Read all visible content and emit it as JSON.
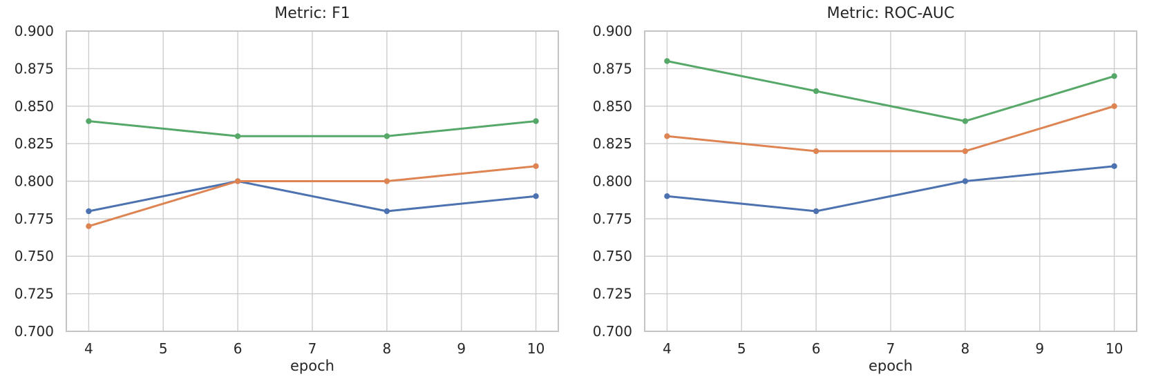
{
  "figure": {
    "background": "#ffffff",
    "text_color": "#262626",
    "grid_color": "#cccccc",
    "spine_color": "#c4c4c4"
  },
  "chart_data": [
    {
      "type": "line",
      "title": "Metric: F1",
      "xlabel": "epoch",
      "ylabel": "",
      "grid": true,
      "legend": "none",
      "x": [
        4,
        6,
        8,
        10
      ],
      "xlim": [
        3.7,
        10.3
      ],
      "ylim": [
        0.7,
        0.9
      ],
      "xticks": [
        4,
        5,
        6,
        7,
        8,
        9,
        10
      ],
      "xtick_labels": [
        "4",
        "5",
        "6",
        "7",
        "8",
        "9",
        "10"
      ],
      "yticks": [
        0.7,
        0.725,
        0.75,
        0.775,
        0.8,
        0.825,
        0.85,
        0.875,
        0.9
      ],
      "ytick_labels": [
        "0.700",
        "0.725",
        "0.750",
        "0.775",
        "0.800",
        "0.825",
        "0.850",
        "0.875",
        "0.900"
      ],
      "series": [
        {
          "name": "series-blue",
          "color": "#4C72B0",
          "values": [
            0.78,
            0.8,
            0.78,
            0.79
          ]
        },
        {
          "name": "series-orange",
          "color": "#DD8452",
          "values": [
            0.77,
            0.8,
            0.8,
            0.81
          ]
        },
        {
          "name": "series-green",
          "color": "#55A868",
          "values": [
            0.84,
            0.83,
            0.83,
            0.84
          ]
        }
      ]
    },
    {
      "type": "line",
      "title": "Metric: ROC-AUC",
      "xlabel": "epoch",
      "ylabel": "",
      "grid": true,
      "legend": "none",
      "x": [
        4,
        6,
        8,
        10
      ],
      "xlim": [
        3.7,
        10.3
      ],
      "ylim": [
        0.7,
        0.9
      ],
      "xticks": [
        4,
        5,
        6,
        7,
        8,
        9,
        10
      ],
      "xtick_labels": [
        "4",
        "5",
        "6",
        "7",
        "8",
        "9",
        "10"
      ],
      "yticks": [
        0.7,
        0.725,
        0.75,
        0.775,
        0.8,
        0.825,
        0.85,
        0.875,
        0.9
      ],
      "ytick_labels": [
        "0.700",
        "0.725",
        "0.750",
        "0.775",
        "0.800",
        "0.825",
        "0.850",
        "0.875",
        "0.900"
      ],
      "series": [
        {
          "name": "series-blue",
          "color": "#4C72B0",
          "values": [
            0.79,
            0.78,
            0.8,
            0.81
          ]
        },
        {
          "name": "series-orange",
          "color": "#DD8452",
          "values": [
            0.83,
            0.82,
            0.82,
            0.85
          ]
        },
        {
          "name": "series-green",
          "color": "#55A868",
          "values": [
            0.88,
            0.86,
            0.84,
            0.87
          ]
        }
      ]
    }
  ]
}
